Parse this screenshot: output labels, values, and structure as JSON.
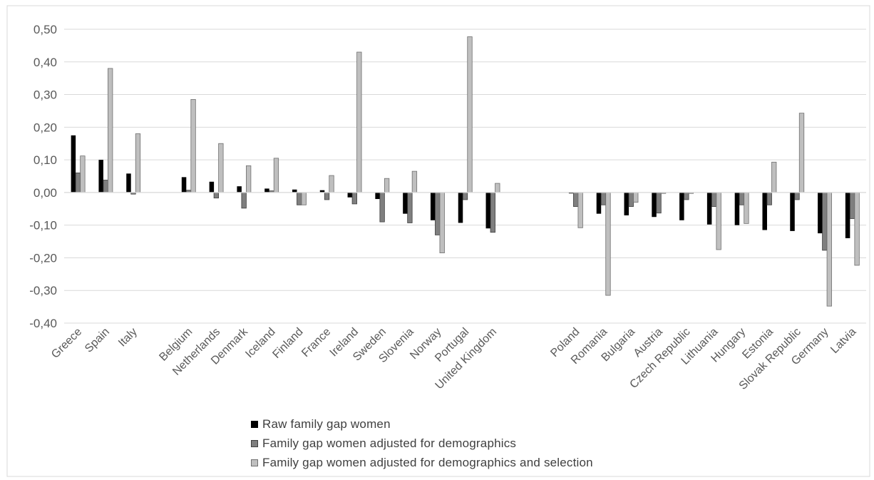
{
  "chart_data": {
    "type": "bar",
    "title": "",
    "xlabel": "",
    "ylabel": "",
    "ylim": [
      -0.4,
      0.5
    ],
    "yticks": [
      "-0,40",
      "-0,30",
      "-0,20",
      "-0,10",
      "0,00",
      "0,10",
      "0,20",
      "0,30",
      "0,40",
      "0,50"
    ],
    "ytick_values": [
      -0.4,
      -0.3,
      -0.2,
      -0.1,
      0.0,
      0.1,
      0.2,
      0.3,
      0.4,
      0.5
    ],
    "grid": true,
    "legend_position": "bottom",
    "categories": [
      "Greece",
      "Spain",
      "Italy",
      "",
      "Belgium",
      "Netherlands",
      "Denmark",
      "Iceland",
      "Finland",
      "France",
      "Ireland",
      "Sweden",
      "Slovenia",
      "Norway",
      "Portugal",
      "United Kingdom",
      "",
      "",
      "Poland",
      "Romania",
      "Bulgaria",
      "Austria",
      "Czech Republic",
      "Lithuania",
      "Hungary",
      "Estonia",
      "Slovak Republic",
      "Germany",
      "Latvia"
    ],
    "series": [
      {
        "name": "Raw family gap women",
        "color": "#000000",
        "values": [
          0.175,
          0.1,
          0.058,
          null,
          0.047,
          0.033,
          0.019,
          0.012,
          0.009,
          0.007,
          -0.015,
          -0.02,
          -0.065,
          -0.085,
          -0.093,
          -0.11,
          null,
          null,
          -0.003,
          -0.065,
          -0.07,
          -0.075,
          -0.085,
          -0.098,
          -0.1,
          -0.115,
          -0.118,
          -0.125,
          -0.14
        ]
      },
      {
        "name": "Family gap women adjusted for demographics",
        "color": "#7f7f7f",
        "values": [
          0.06,
          0.038,
          -0.005,
          null,
          0.007,
          -0.017,
          -0.048,
          0.005,
          -0.038,
          -0.022,
          -0.035,
          -0.09,
          -0.093,
          -0.13,
          -0.022,
          -0.122,
          null,
          null,
          -0.043,
          -0.038,
          -0.043,
          -0.063,
          -0.022,
          -0.043,
          -0.038,
          -0.038,
          -0.022,
          -0.177,
          -0.08
        ]
      },
      {
        "name": "Family gap women adjusted for demographics and selection",
        "color": "#bfbfbf",
        "values": [
          0.112,
          0.38,
          0.18,
          null,
          0.285,
          0.15,
          0.082,
          0.105,
          -0.038,
          0.052,
          0.43,
          0.043,
          0.065,
          -0.185,
          0.477,
          0.028,
          null,
          null,
          -0.108,
          -0.315,
          -0.03,
          -0.003,
          -0.003,
          -0.175,
          -0.095,
          0.093,
          0.243,
          -0.348,
          -0.223
        ]
      }
    ]
  }
}
